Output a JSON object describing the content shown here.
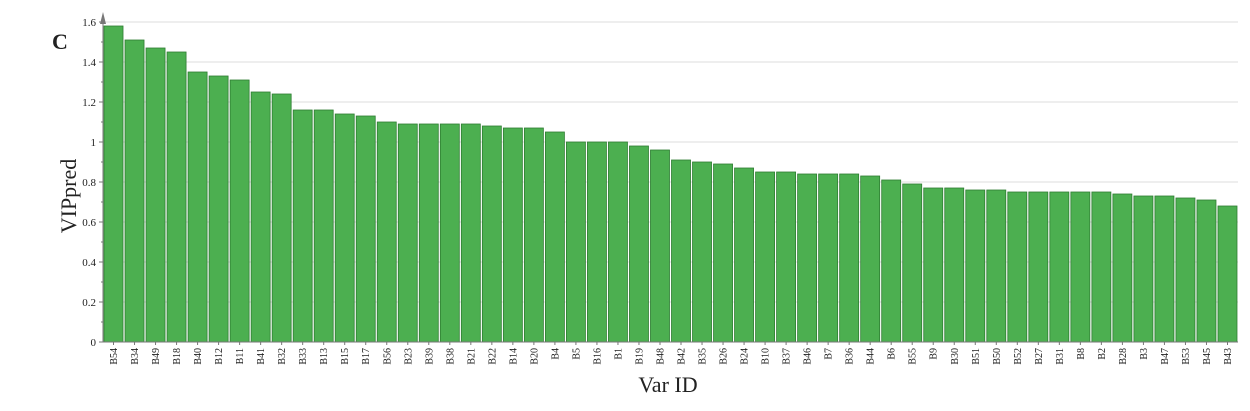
{
  "chart_data": {
    "type": "bar",
    "panel_label": "C",
    "xlabel": "Var ID",
    "ylabel": "VIPpred",
    "ylim": [
      0,
      1.6
    ],
    "yticks": [
      0,
      0.2,
      0.4,
      0.6,
      0.8,
      1,
      1.2,
      1.4,
      1.6
    ],
    "grid": true,
    "bar_color": "#4caf50",
    "bar_edge_color": "#2e7d32",
    "categories": [
      "B54",
      "B34",
      "B49",
      "B18",
      "B40",
      "B12",
      "B11",
      "B41",
      "B32",
      "B33",
      "B13",
      "B15",
      "B17",
      "B56",
      "B23",
      "B39",
      "B38",
      "B21",
      "B22",
      "B14",
      "B20",
      "B4",
      "B5",
      "B16",
      "B1",
      "B19",
      "B48",
      "B42",
      "B35",
      "B26",
      "B24",
      "B10",
      "B37",
      "B46",
      "B7",
      "B36",
      "B44",
      "B6",
      "B55",
      "B9",
      "B30",
      "B51",
      "B50",
      "B52",
      "B27",
      "B31",
      "B8",
      "B2",
      "B28",
      "B3",
      "B47",
      "B53",
      "B45",
      "B43"
    ],
    "values": [
      1.58,
      1.51,
      1.47,
      1.45,
      1.35,
      1.33,
      1.31,
      1.25,
      1.24,
      1.16,
      1.16,
      1.14,
      1.13,
      1.1,
      1.09,
      1.09,
      1.09,
      1.09,
      1.08,
      1.07,
      1.07,
      1.05,
      1.0,
      1.0,
      1.0,
      0.98,
      0.96,
      0.91,
      0.9,
      0.89,
      0.87,
      0.85,
      0.85,
      0.84,
      0.84,
      0.84,
      0.83,
      0.81,
      0.79,
      0.77,
      0.77,
      0.76,
      0.76,
      0.75,
      0.75,
      0.75,
      0.75,
      0.75,
      0.74,
      0.73,
      0.73,
      0.72,
      0.71,
      0.68
    ]
  }
}
